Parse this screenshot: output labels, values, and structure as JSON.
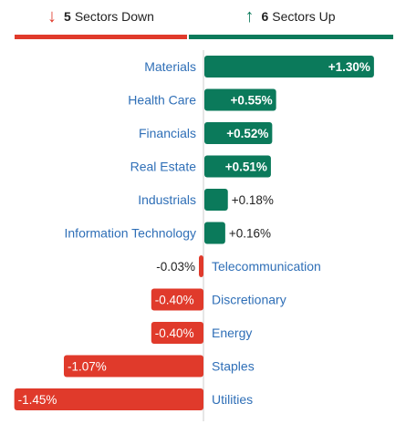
{
  "summary": {
    "down": {
      "count": "5",
      "label": "Sectors Down",
      "icon": "arrow-down-icon",
      "color": "#e03a2b"
    },
    "up": {
      "count": "6",
      "label": "Sectors Up",
      "icon": "arrow-up-icon",
      "color": "#0b7a5b"
    },
    "progress": {
      "down_fraction": 0.4545,
      "up_fraction": 0.5455
    }
  },
  "chart_data": {
    "type": "bar",
    "orientation": "horizontal-diverging",
    "categories": [
      "Materials",
      "Health Care",
      "Financials",
      "Real Estate",
      "Industrials",
      "Information Technology",
      "Telecommunication",
      "Discretionary",
      "Energy",
      "Staples",
      "Utilities"
    ],
    "values": [
      1.3,
      0.55,
      0.52,
      0.51,
      0.18,
      0.16,
      -0.03,
      -0.4,
      -0.4,
      -1.07,
      -1.45
    ],
    "value_labels": [
      "+1.30%",
      "+0.55%",
      "+0.52%",
      "+0.51%",
      "+0.18%",
      "+0.16%",
      "-0.03%",
      "-0.40%",
      "-0.40%",
      "-1.07%",
      "-1.45%"
    ],
    "colors": {
      "positive": "#0b7a5b",
      "negative": "#e03a2b",
      "label": "#2f6fb7",
      "axis": "#cccccc"
    },
    "grid": false
  }
}
